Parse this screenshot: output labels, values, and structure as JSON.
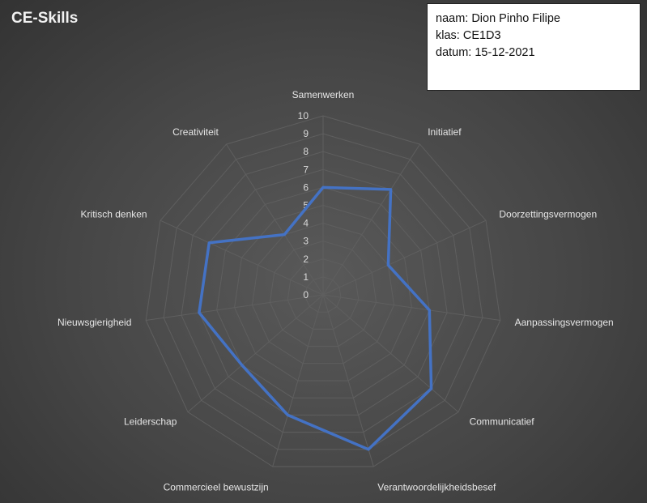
{
  "title": "CE-Skills",
  "info": {
    "name_line": "naam: Dion Pinho Filipe",
    "class_line": "klas: CE1D3",
    "date_line": "datum:  15-12-2021"
  },
  "colors": {
    "series": "#4472c4",
    "grid": "#5f5f5f",
    "text": "#e6e6e6"
  },
  "chart_data": {
    "type": "radar",
    "title": "CE-Skills",
    "categories": [
      "Samenwerken",
      "Initiatief",
      "Doorzettingsvermogen",
      "Aanpassingsvermogen",
      "Communicatief",
      "Verantwoordelijkheidsbesef",
      "Commercieel bewustzijn",
      "Leiderschap",
      "Nieuwsgierigheid",
      "Kritisch denken",
      "Creativiteit"
    ],
    "ticks": [
      "0",
      "1",
      "2",
      "3",
      "4",
      "5",
      "6",
      "7",
      "8",
      "9",
      "10"
    ],
    "rmin": 0,
    "rmax": 10,
    "grid": true,
    "series": [
      {
        "values": [
          6,
          7,
          4,
          6,
          8,
          9,
          7,
          6,
          7,
          7,
          4
        ]
      }
    ]
  }
}
